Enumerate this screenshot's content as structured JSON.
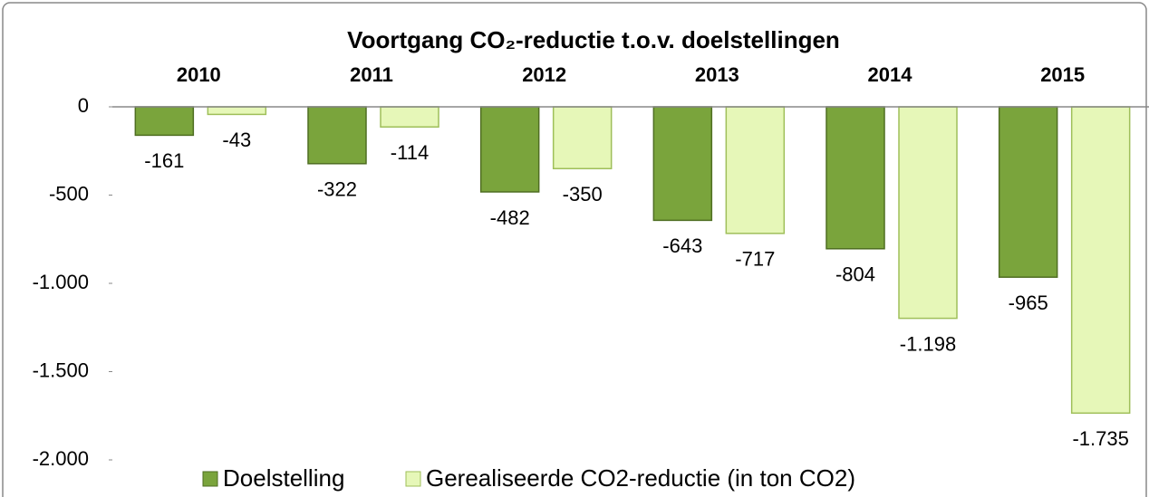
{
  "chart_data": {
    "type": "bar",
    "title": "Voortgang CO₂-reductie t.o.v. doelstellingen",
    "categories": [
      "2010",
      "2011",
      "2012",
      "2013",
      "2014",
      "2015"
    ],
    "series": [
      {
        "name": "Doelstelling",
        "color": "#7aa43c",
        "values": [
          -161,
          -322,
          -482,
          -643,
          -804,
          -965
        ]
      },
      {
        "name": "Gerealiseerde CO2-reductie (in ton CO2)",
        "color": "#e6f7b8",
        "values": [
          -43,
          -114,
          -350,
          -717,
          -1198,
          -1735
        ],
        "value_labels": [
          "-43",
          "-114",
          "-350",
          "-717",
          "-1.198",
          "-1.735"
        ]
      }
    ],
    "ylim": [
      -2000,
      0
    ],
    "yticks": [
      0,
      -500,
      {
        "value": -1000,
        "label": "-1.000"
      },
      {
        "value": -1500,
        "label": "-1.500"
      },
      {
        "value": -2000,
        "label": "-2.000"
      }
    ],
    "grid": false,
    "legend": "bottom"
  }
}
